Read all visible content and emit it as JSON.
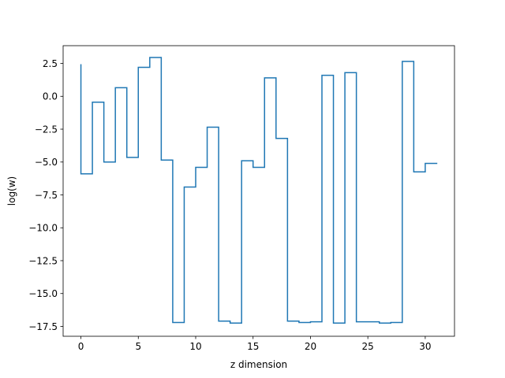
{
  "chart_data": {
    "type": "line",
    "drawstyle": "steps-pre",
    "xlabel": "z dimension",
    "ylabel": "log(w)",
    "xlim": [
      -1.55,
      32.55
    ],
    "ylim": [
      -18.25,
      3.85
    ],
    "grid": false,
    "legend": null,
    "xticks": [
      0,
      5,
      10,
      15,
      20,
      25,
      30
    ],
    "xtick_labels": [
      "0",
      "5",
      "10",
      "15",
      "20",
      "25",
      "30"
    ],
    "yticks": [
      2.5,
      0.0,
      -2.5,
      -5.0,
      -7.5,
      -10.0,
      -12.5,
      -15.0,
      -17.5
    ],
    "ytick_labels": [
      "2.5",
      "0.0",
      "−2.5",
      "−5.0",
      "−7.5",
      "−10.0",
      "−12.5",
      "−15.0",
      "−17.5"
    ],
    "series": [
      {
        "color": "#1f77b4",
        "x": [
          0,
          1,
          2,
          3,
          4,
          5,
          6,
          7,
          8,
          9,
          10,
          11,
          12,
          13,
          14,
          15,
          16,
          17,
          18,
          19,
          20,
          21,
          22,
          23,
          24,
          25,
          26,
          27,
          28,
          29,
          30,
          31
        ],
        "y": [
          2.4,
          -5.9,
          -0.45,
          -5.0,
          0.65,
          -4.65,
          2.2,
          2.95,
          -4.85,
          -17.2,
          -6.9,
          -5.4,
          -2.35,
          -17.1,
          -17.25,
          -4.9,
          -5.4,
          1.4,
          -3.2,
          -17.1,
          -17.2,
          -17.15,
          1.6,
          -17.25,
          1.8,
          -17.15,
          -17.15,
          -17.25,
          -17.2,
          2.65,
          -5.75,
          -5.1
        ]
      }
    ]
  }
}
